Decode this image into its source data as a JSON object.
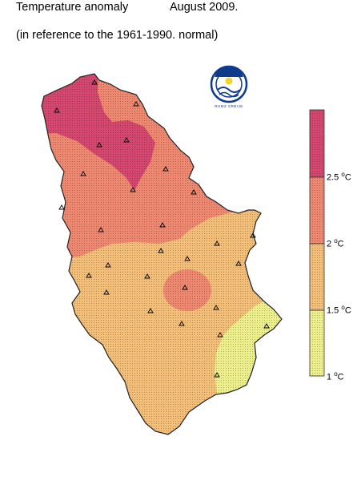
{
  "header": {
    "title": "Temperature anomaly",
    "date": "August 2009.",
    "subtitle": "(in reference to the 1961-1990. normal)"
  },
  "logo": {
    "text": "RHMZ SRBIJE",
    "icon": "rhmz-sun-wave-logo"
  },
  "legend": {
    "ticks": [
      {
        "value": "2.5",
        "unit": "C"
      },
      {
        "value": "2",
        "unit": "C"
      },
      {
        "value": "1.5",
        "unit": "C"
      },
      {
        "value": "1",
        "unit": "C"
      }
    ],
    "classes": [
      {
        "range": "> 2.5",
        "color": "#d4486f"
      },
      {
        "range": "2 - 2.5",
        "color": "#ef8870"
      },
      {
        "range": "1.5 - 2",
        "color": "#f2be78"
      },
      {
        "range": "1 - 1.5",
        "color": "#ecef8c"
      }
    ]
  },
  "colors": {
    "above_2_5": "#d4486f",
    "from_2_to_2_5": "#ef8870",
    "from_1_5_to_2": "#f2be78",
    "from_1_to_1_5": "#ecef8c"
  },
  "stations_marker": "triangle"
}
